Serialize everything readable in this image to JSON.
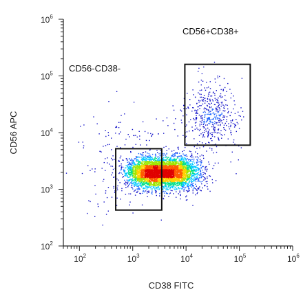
{
  "chart_data": {
    "type": "scatter",
    "subtype": "flow-cytometry-density-dot-plot",
    "xlabel": "CD38 FITC",
    "ylabel": "CD56 APC",
    "x_scale": "log10",
    "y_scale": "log10",
    "xlim": [
      50,
      1000000
    ],
    "ylim": [
      100,
      1000000
    ],
    "x_ticks": [
      {
        "base": "10",
        "exp": "2",
        "value": 100
      },
      {
        "base": "10",
        "exp": "3",
        "value": 1000
      },
      {
        "base": "10",
        "exp": "4",
        "value": 10000
      },
      {
        "base": "10",
        "exp": "5",
        "value": 100000
      },
      {
        "base": "10",
        "exp": "6",
        "value": 1000000
      }
    ],
    "y_ticks": [
      {
        "base": "10",
        "exp": "2",
        "value": 100
      },
      {
        "base": "10",
        "exp": "3",
        "value": 1000
      },
      {
        "base": "10",
        "exp": "4",
        "value": 10000
      },
      {
        "base": "10",
        "exp": "5",
        "value": 100000
      },
      {
        "base": "10",
        "exp": "6",
        "value": 1000000
      }
    ],
    "grid": false,
    "gates": [
      {
        "label": "CD56-CD38-",
        "x_range": [
          480,
          3500
        ],
        "y_range": [
          430,
          5200
        ],
        "label_position": "above-left"
      },
      {
        "label": "CD56+CD38+",
        "x_range": [
          9500,
          160000
        ],
        "y_range": [
          6000,
          160000
        ],
        "label_position": "above"
      }
    ],
    "populations": [
      {
        "description_center": [
          2000,
          2000
        ],
        "spread_log": [
          0.22,
          0.13
        ]
      },
      {
        "description_center": [
          6000,
          2000
        ],
        "spread_log": [
          0.25,
          0.14
        ]
      },
      {
        "description_center": [
          30000,
          20000
        ],
        "spread_log": [
          0.25,
          0.28
        ]
      }
    ],
    "density_colors": [
      "#1010c8",
      "#1e64ff",
      "#00c8ff",
      "#00e08c",
      "#a0e600",
      "#ffd200",
      "#ff5a00",
      "#e00000"
    ]
  }
}
